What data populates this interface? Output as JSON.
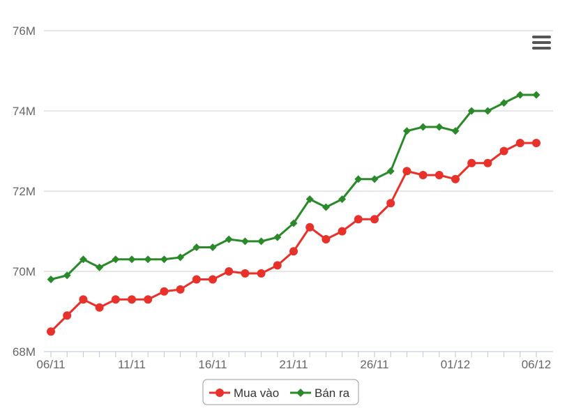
{
  "chart_data": {
    "type": "line",
    "title": "",
    "xlabel": "",
    "ylabel": "",
    "x": [
      "06/11",
      "07/11",
      "08/11",
      "09/11",
      "10/11",
      "11/11",
      "12/11",
      "13/11",
      "14/11",
      "15/11",
      "16/11",
      "17/11",
      "18/11",
      "19/11",
      "20/11",
      "21/11",
      "22/11",
      "23/11",
      "24/11",
      "25/11",
      "26/11",
      "27/11",
      "28/11",
      "29/11",
      "30/11",
      "01/12",
      "02/12",
      "03/12",
      "04/12",
      "05/12",
      "06/12"
    ],
    "x_tick_labels": [
      "06/11",
      "11/11",
      "16/11",
      "21/11",
      "26/11",
      "01/12",
      "06/12"
    ],
    "y_tick_labels": [
      "68M",
      "70M",
      "72M",
      "74M",
      "76M"
    ],
    "ylim": [
      68000000,
      76000000
    ],
    "grid": true,
    "legend_position": "bottom-center",
    "series": [
      {
        "name": "Mua vào",
        "color": "#e8312b",
        "marker": "circle",
        "values": [
          68500000,
          68900000,
          69300000,
          69100000,
          69300000,
          69300000,
          69300000,
          69500000,
          69550000,
          69800000,
          69800000,
          70000000,
          69950000,
          69950000,
          70150000,
          70500000,
          71100000,
          70800000,
          71000000,
          71300000,
          71300000,
          71700000,
          72500000,
          72400000,
          72400000,
          72300000,
          72700000,
          72700000,
          73000000,
          73200000,
          73200000
        ]
      },
      {
        "name": "Bán ra",
        "color": "#2a8a2a",
        "marker": "diamond",
        "values": [
          69800000,
          69900000,
          70300000,
          70100000,
          70300000,
          70300000,
          70300000,
          70300000,
          70350000,
          70600000,
          70600000,
          70800000,
          70750000,
          70750000,
          70850000,
          71200000,
          71800000,
          71600000,
          71800000,
          72300000,
          72300000,
          72500000,
          73500000,
          73600000,
          73600000,
          73500000,
          74000000,
          74000000,
          74200000,
          74400000,
          74400000
        ]
      }
    ]
  },
  "menu": {
    "icon": "hamburger-menu-icon"
  }
}
